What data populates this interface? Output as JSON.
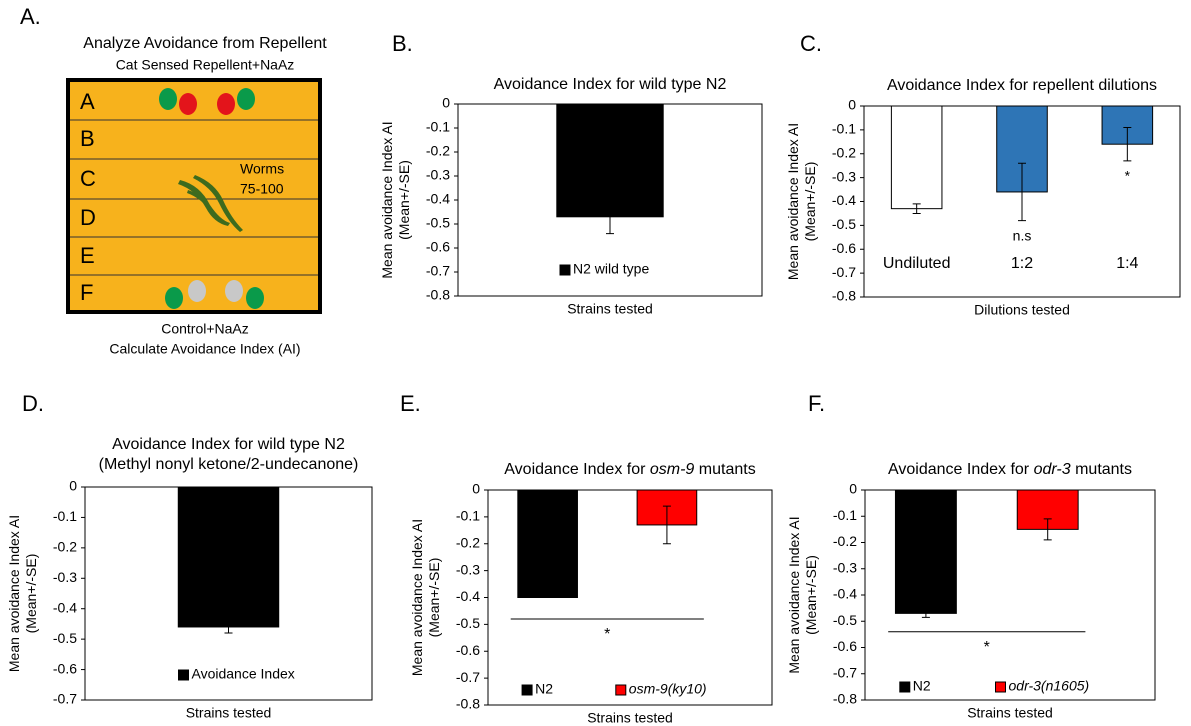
{
  "diagram": {
    "panel_label": "A.",
    "title": "Analyze Avoidance from Repellent",
    "top_label": "Cat Sensed Repellent+NaAz",
    "rows": [
      "A",
      "B",
      "C",
      "D",
      "E",
      "F"
    ],
    "worm_label": [
      "Worms",
      "75-100"
    ],
    "bottom_label": [
      "Control+NaAz",
      "Calculate Avoidance Index (AI)"
    ]
  },
  "chart_data": [
    {
      "type": "bar",
      "panel_label": "B.",
      "title": [
        "Avoidance Index for wild type N2"
      ],
      "ylabel": [
        "Mean avoidance Index AI",
        "(Mean+/-SE)"
      ],
      "xlabel": "Strains tested",
      "categories": [
        null
      ],
      "series": [
        {
          "name": "N2 wild type",
          "color": "#000000",
          "values": [
            -0.47
          ],
          "errors": [
            0.07
          ]
        }
      ],
      "ylim": [
        -0.8,
        0
      ],
      "yticks": [
        0,
        -0.1,
        -0.2,
        -0.3,
        -0.4,
        -0.5,
        -0.6,
        -0.7,
        -0.8
      ]
    },
    {
      "type": "bar",
      "panel_label": "C.",
      "title": [
        "Avoidance Index for repellent dilutions"
      ],
      "ylabel": [
        "Mean avoidance Index AI",
        "(Mean+/-SE)"
      ],
      "xlabel": "Dilutions tested",
      "categories": [
        "Undiluted",
        "1:2",
        "1:4"
      ],
      "values": [
        -0.43,
        -0.36,
        -0.16
      ],
      "errors": [
        0.02,
        0.12,
        0.07
      ],
      "colors": [
        "#ffffff",
        "#2e75b6",
        "#2e75b6"
      ],
      "annotations": [
        "n.s",
        "*"
      ],
      "annotation_bars": [
        1,
        2
      ],
      "ylim": [
        -0.8,
        0
      ],
      "yticks": [
        0,
        -0.1,
        -0.2,
        -0.3,
        -0.4,
        -0.5,
        -0.6,
        -0.7,
        -0.8
      ]
    },
    {
      "type": "bar",
      "panel_label": "D.",
      "title": [
        "Avoidance Index for wild type N2",
        "(Methyl nonyl ketone/2-undecanone)"
      ],
      "ylabel": [
        "Mean avoidance Index AI",
        "(Mean+/-SE)"
      ],
      "xlabel": "Strains tested",
      "categories": [
        null
      ],
      "series": [
        {
          "name": "Avoidance Index",
          "color": "#000000",
          "values": [
            -0.46
          ],
          "errors": [
            0.02
          ]
        }
      ],
      "ylim": [
        -0.7,
        0
      ],
      "yticks": [
        0,
        -0.1,
        -0.2,
        -0.3,
        -0.4,
        -0.5,
        -0.6,
        -0.7
      ]
    },
    {
      "type": "bar",
      "panel_label": "E.",
      "title_parts": [
        "Avoidance Index for ",
        "osm-9",
        " mutants"
      ],
      "ylabel": [
        "Mean avoidance Index AI",
        "(Mean+/-SE)"
      ],
      "xlabel": "Strains tested",
      "categories": [
        null
      ],
      "series": [
        {
          "name": "N2",
          "color": "#000000",
          "values": [
            -0.4
          ]
        },
        {
          "name": "osm-9(ky10)",
          "italic": true,
          "color": "#ff0000",
          "values": [
            -0.13
          ],
          "errors": [
            0.07
          ]
        }
      ],
      "significance": {
        "y": -0.48,
        "label": "*"
      },
      "ylim": [
        -0.8,
        0
      ],
      "yticks": [
        0,
        -0.1,
        -0.2,
        -0.3,
        -0.4,
        -0.5,
        -0.6,
        -0.7,
        -0.8
      ]
    },
    {
      "type": "bar",
      "panel_label": "F.",
      "title_parts": [
        "Avoidance Index for ",
        "odr-3",
        " mutants"
      ],
      "ylabel": [
        "Mean avoidance Index AI",
        "(Mean+/-SE)"
      ],
      "xlabel": "Strains tested",
      "categories": [
        null
      ],
      "series": [
        {
          "name": "N2",
          "color": "#000000",
          "values": [
            -0.47
          ],
          "errors": [
            0.015
          ]
        },
        {
          "name": "odr-3(n1605)",
          "italic": true,
          "color": "#ff0000",
          "values": [
            -0.15
          ],
          "errors": [
            0.04
          ]
        }
      ],
      "significance": {
        "y": -0.54,
        "label": "*"
      },
      "ylim": [
        -0.8,
        0
      ],
      "yticks": [
        0,
        -0.1,
        -0.2,
        -0.3,
        -0.4,
        -0.5,
        -0.6,
        -0.7,
        -0.8
      ]
    }
  ]
}
